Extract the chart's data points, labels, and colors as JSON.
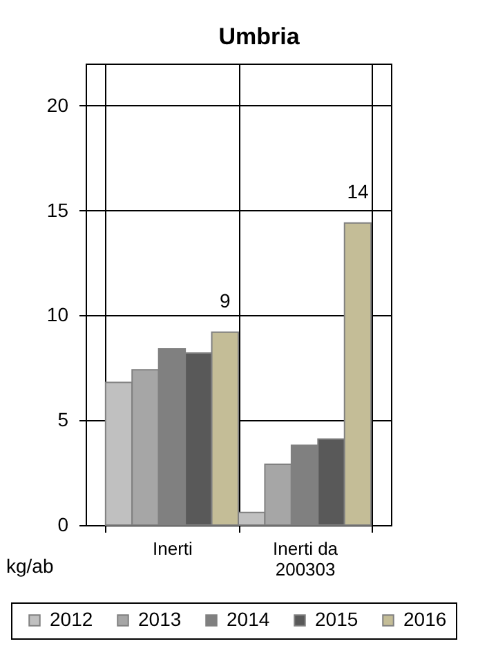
{
  "chart_data": {
    "type": "bar",
    "title": "Umbria",
    "ylabel": "kg/ab",
    "categories": [
      "Inerti",
      "Inerti da 200303"
    ],
    "series": [
      {
        "name": "2012",
        "color": "#c0c0c0",
        "values": [
          6.8,
          0.6
        ]
      },
      {
        "name": "2013",
        "color": "#a6a6a6",
        "values": [
          7.4,
          2.9
        ]
      },
      {
        "name": "2014",
        "color": "#808080",
        "values": [
          8.4,
          3.8
        ]
      },
      {
        "name": "2015",
        "color": "#595959",
        "values": [
          8.2,
          4.1
        ]
      },
      {
        "name": "2016",
        "color": "#c4bd97",
        "values": [
          9.2,
          14.4
        ],
        "value_labels": [
          "9",
          "14"
        ]
      }
    ],
    "ylim": [
      0,
      22
    ],
    "yticks": [
      0,
      5,
      10,
      15,
      20
    ],
    "grid": true,
    "legend": "bottom"
  }
}
